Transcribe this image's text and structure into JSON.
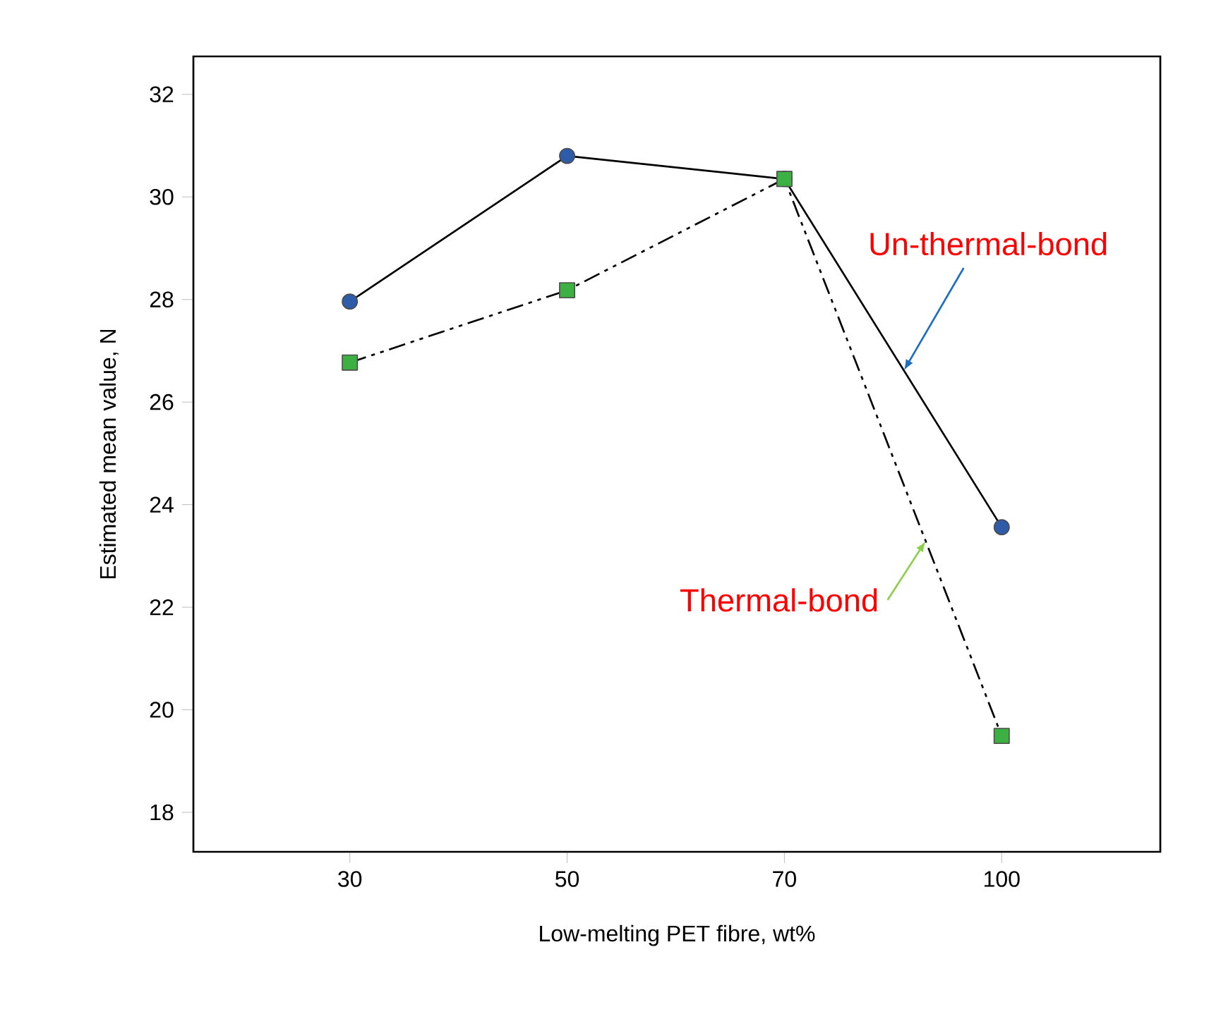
{
  "chart_data": {
    "type": "line",
    "xlabel": "Low-melting PET fibre, wt%",
    "ylabel": "Estimated mean value, N",
    "categories": [
      "30",
      "50",
      "70",
      "100"
    ],
    "series": [
      {
        "name": "Un-thermal-bond",
        "color": "#2e5ca8",
        "values": [
          27.96,
          30.8,
          30.35,
          23.56
        ],
        "marker": "circle",
        "line_style": "solid"
      },
      {
        "name": "Thermal-bond",
        "color": "#3cb043",
        "values": [
          26.77,
          28.18,
          30.35,
          19.49
        ],
        "marker": "square",
        "line_style": "dashed"
      }
    ],
    "ylim": [
      17.23,
      32.74
    ],
    "yticks": [
      18,
      20,
      22,
      24,
      26,
      28,
      30,
      32
    ],
    "legend": false,
    "grid": false
  }
}
